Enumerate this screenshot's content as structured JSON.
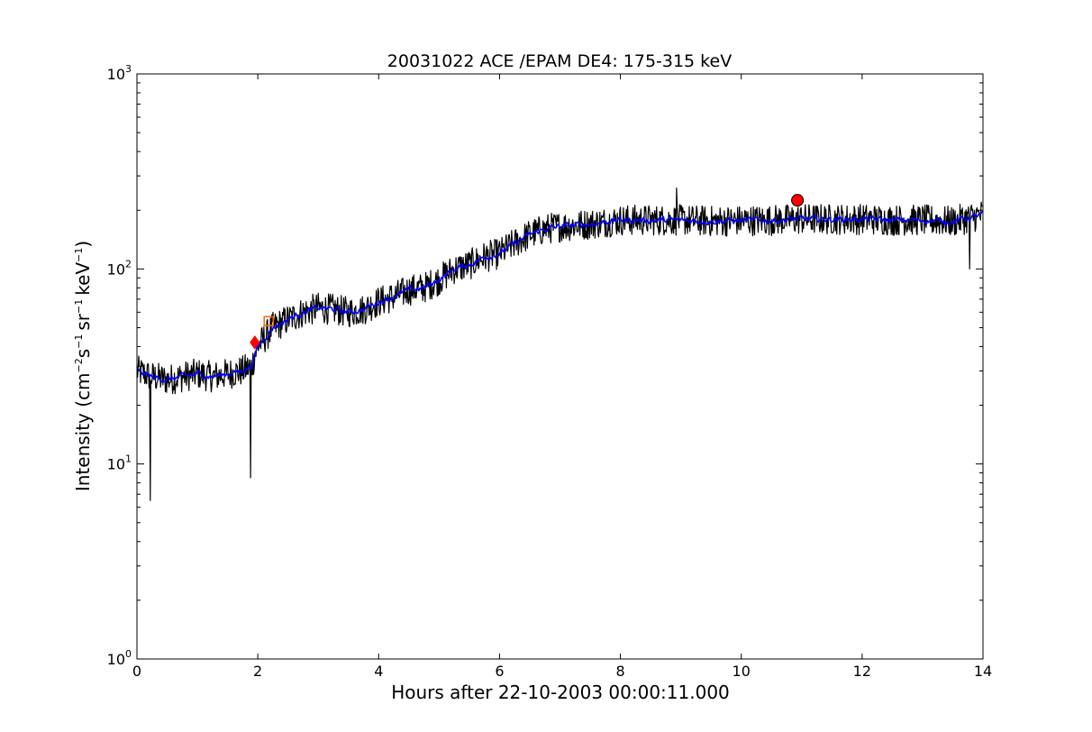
{
  "chart_data": {
    "type": "line",
    "title": "20031022 ACE /EPAM DE4: 175-315 keV",
    "xlabel": "Hours after 22-10-2003 00:00:11.000",
    "ylabel": {
      "prefix": "Intensity (cm",
      "exp1": "−2",
      "mid1": "s",
      "exp2": "−1",
      "mid2": "sr",
      "exp3": "−1",
      "mid3": "keV",
      "exp4": "−1",
      "suffix": ")"
    },
    "xlim": [
      0,
      14
    ],
    "ylim": [
      1,
      1000
    ],
    "yscale": "log",
    "grid": false,
    "x_ticks": [
      0,
      2,
      4,
      6,
      8,
      10,
      12,
      14
    ],
    "x_tick_labels": [
      "0",
      "2",
      "4",
      "6",
      "8",
      "10",
      "12",
      "14"
    ],
    "y_ticks": [
      {
        "value": 1,
        "base": "10",
        "exp": "0"
      },
      {
        "value": 10,
        "base": "10",
        "exp": "1"
      },
      {
        "value": 100,
        "base": "10",
        "exp": "2"
      },
      {
        "value": 1000,
        "base": "10",
        "exp": "3"
      }
    ],
    "series": [
      {
        "color": "#000000",
        "style": "raw-noisy",
        "x": [
          0.0,
          0.25,
          0.5,
          0.75,
          1.0,
          1.25,
          1.5,
          1.75,
          1.9,
          2.0,
          2.25,
          2.5,
          2.75,
          3.0,
          3.25,
          3.5,
          3.75,
          4.0,
          4.25,
          4.5,
          4.75,
          5.0,
          5.25,
          5.5,
          5.75,
          6.0,
          6.25,
          6.5,
          6.75,
          7.0,
          7.5,
          8.0,
          8.5,
          9.0,
          9.5,
          10.0,
          10.5,
          11.0,
          11.5,
          12.0,
          12.5,
          13.0,
          13.5,
          14.0
        ],
        "y": [
          30,
          28,
          27,
          28,
          29,
          28,
          29,
          30,
          32,
          40,
          50,
          55,
          60,
          63,
          62,
          60,
          62,
          68,
          72,
          78,
          80,
          88,
          100,
          105,
          115,
          120,
          135,
          150,
          160,
          165,
          170,
          178,
          178,
          178,
          176,
          177,
          178,
          180,
          180,
          180,
          178,
          178,
          175,
          190
        ],
        "noise_amplitude_log10": 0.08,
        "spikes": [
          {
            "x": 0.22,
            "y": 6.5
          },
          {
            "x": 1.88,
            "y": 8.5
          },
          {
            "x": 8.93,
            "y": 260
          },
          {
            "x": 13.78,
            "y": 100
          }
        ]
      },
      {
        "color": "#0000ff",
        "style": "smoothed",
        "x": [
          0.0,
          0.25,
          0.5,
          0.75,
          1.0,
          1.25,
          1.5,
          1.75,
          1.9,
          2.0,
          2.25,
          2.5,
          2.75,
          3.0,
          3.25,
          3.5,
          3.75,
          4.0,
          4.25,
          4.5,
          4.75,
          5.0,
          5.25,
          5.5,
          5.75,
          6.0,
          6.25,
          6.5,
          6.75,
          7.0,
          7.5,
          8.0,
          8.5,
          9.0,
          9.5,
          10.0,
          10.5,
          11.0,
          11.5,
          12.0,
          12.5,
          13.0,
          13.5,
          14.0
        ],
        "y": [
          30,
          28,
          27,
          28,
          29,
          28,
          29,
          30,
          32,
          40,
          50,
          55,
          60,
          63,
          62,
          60,
          62,
          68,
          72,
          78,
          80,
          88,
          100,
          105,
          115,
          120,
          135,
          150,
          160,
          165,
          170,
          178,
          178,
          178,
          176,
          177,
          178,
          180,
          180,
          180,
          178,
          178,
          175,
          190
        ],
        "noise_amplitude_log10": 0.03
      }
    ],
    "markers": [
      {
        "shape": "diamond",
        "x": 1.95,
        "y": 42,
        "color": "#ff0000"
      },
      {
        "shape": "square-outline",
        "x": 2.18,
        "y": 54,
        "color": "#ff6600"
      },
      {
        "shape": "circle",
        "x": 10.93,
        "y": 225,
        "color": "#ff0000"
      }
    ]
  }
}
